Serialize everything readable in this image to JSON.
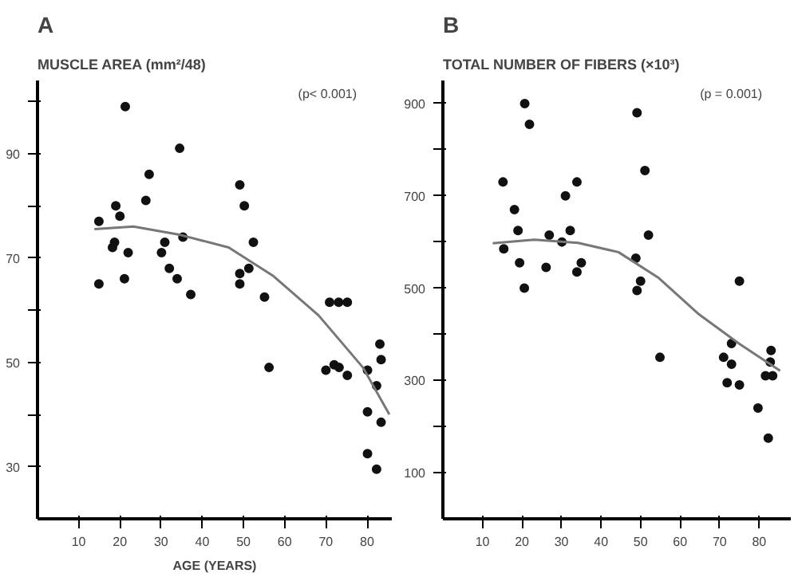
{
  "chart_data": [
    {
      "type": "scatter",
      "title": "A",
      "subtitle": "MUSCLE AREA (mm²/48)",
      "xlabel": "AGE (YEARS)",
      "annotations": [
        "(p< 0.001)"
      ],
      "xlim": [
        0,
        86
      ],
      "ylim": [
        20,
        104
      ],
      "xticks": [
        10,
        20,
        30,
        40,
        50,
        60,
        70,
        80
      ],
      "yticks": [
        30,
        {
          "value": 40,
          "label": null
        },
        50,
        {
          "value": 60,
          "label": null
        },
        70,
        {
          "value": 80,
          "label": null
        },
        90,
        {
          "value": 100,
          "label": null
        }
      ],
      "grid": false,
      "marker": "circle",
      "series": [
        {
          "color": "#111111",
          "x": [
            21.3,
            34.5,
            27.1,
            49.1,
            19,
            26.3,
            50.2,
            20,
            14.9,
            18.7,
            18.2,
            22,
            30.9,
            35.3,
            52.4,
            30.1,
            32,
            51.3,
            33.9,
            49.1,
            21.1,
            49.1,
            14.9,
            37.2,
            55.1,
            70.9,
            73.1,
            75.2,
            56.2,
            70,
            72,
            73.2,
            75.2,
            80.1,
            83.4,
            82.3,
            83.1,
            80.1,
            83.4,
            80.1,
            82.3
          ],
          "values": [
            99,
            91,
            86,
            84,
            80,
            81,
            80,
            78,
            77,
            73,
            72,
            71,
            73,
            74,
            73,
            71,
            68,
            68,
            66,
            67,
            66,
            65,
            65,
            63,
            62.5,
            61.5,
            61.5,
            61.5,
            49,
            48.5,
            49.5,
            49,
            47.5,
            48.5,
            50.5,
            45.5,
            53.5,
            40.5,
            38.5,
            32.5,
            29.5
          ]
        },
        {
          "type": "line",
          "color": "#777777",
          "marker": "none",
          "x": [
            13.8,
            23.3,
            34.2,
            46.4,
            57.3,
            68.2,
            79,
            85.4
          ],
          "values": [
            75.5,
            76,
            74.5,
            72,
            66.5,
            59,
            49,
            40
          ]
        }
      ]
    },
    {
      "type": "scatter",
      "title": "B",
      "subtitle": "TOTAL NUMBER OF FIBERS (×10³)",
      "annotations": [
        "(p = 0.001)"
      ],
      "xlim": [
        0,
        88
      ],
      "ylim": [
        0,
        950
      ],
      "xticks": [
        10,
        20,
        30,
        40,
        50,
        60,
        70,
        80
      ],
      "yticks": [
        100,
        {
          "value": 200,
          "label": null
        },
        300,
        {
          "value": 400,
          "label": null
        },
        500,
        {
          "value": 600,
          "label": null
        },
        700,
        {
          "value": 800,
          "label": null
        },
        900
      ],
      "grid": false,
      "marker": "circle",
      "series": [
        {
          "color": "#111111",
          "x": [
            20.7,
            21.9,
            49.1,
            51.1,
            15.2,
            33.9,
            31,
            18.1,
            19,
            32.2,
            26.9,
            30.1,
            52,
            15.4,
            19.4,
            35,
            26.1,
            33.9,
            48.8,
            50,
            75,
            20.6,
            49.1,
            54.9,
            71,
            73,
            73,
            83,
            82.8,
            71.9,
            75,
            79.7,
            81.6,
            83.4,
            82.3
          ],
          "values": [
            900,
            855,
            880,
            755,
            730,
            730,
            700,
            670,
            625,
            625,
            615,
            600,
            615,
            585,
            555,
            555,
            545,
            535,
            565,
            515,
            515,
            500,
            495,
            350,
            350,
            335,
            380,
            365,
            340,
            295,
            290,
            240,
            310,
            310,
            175
          ]
        },
        {
          "type": "line",
          "color": "#777777",
          "marker": "none",
          "x": [
            12.6,
            23.1,
            34.2,
            44.4,
            54.6,
            64.8,
            75,
            85.3
          ],
          "values": [
            597,
            605,
            598,
            578,
            522,
            443,
            379,
            321
          ]
        }
      ]
    }
  ]
}
